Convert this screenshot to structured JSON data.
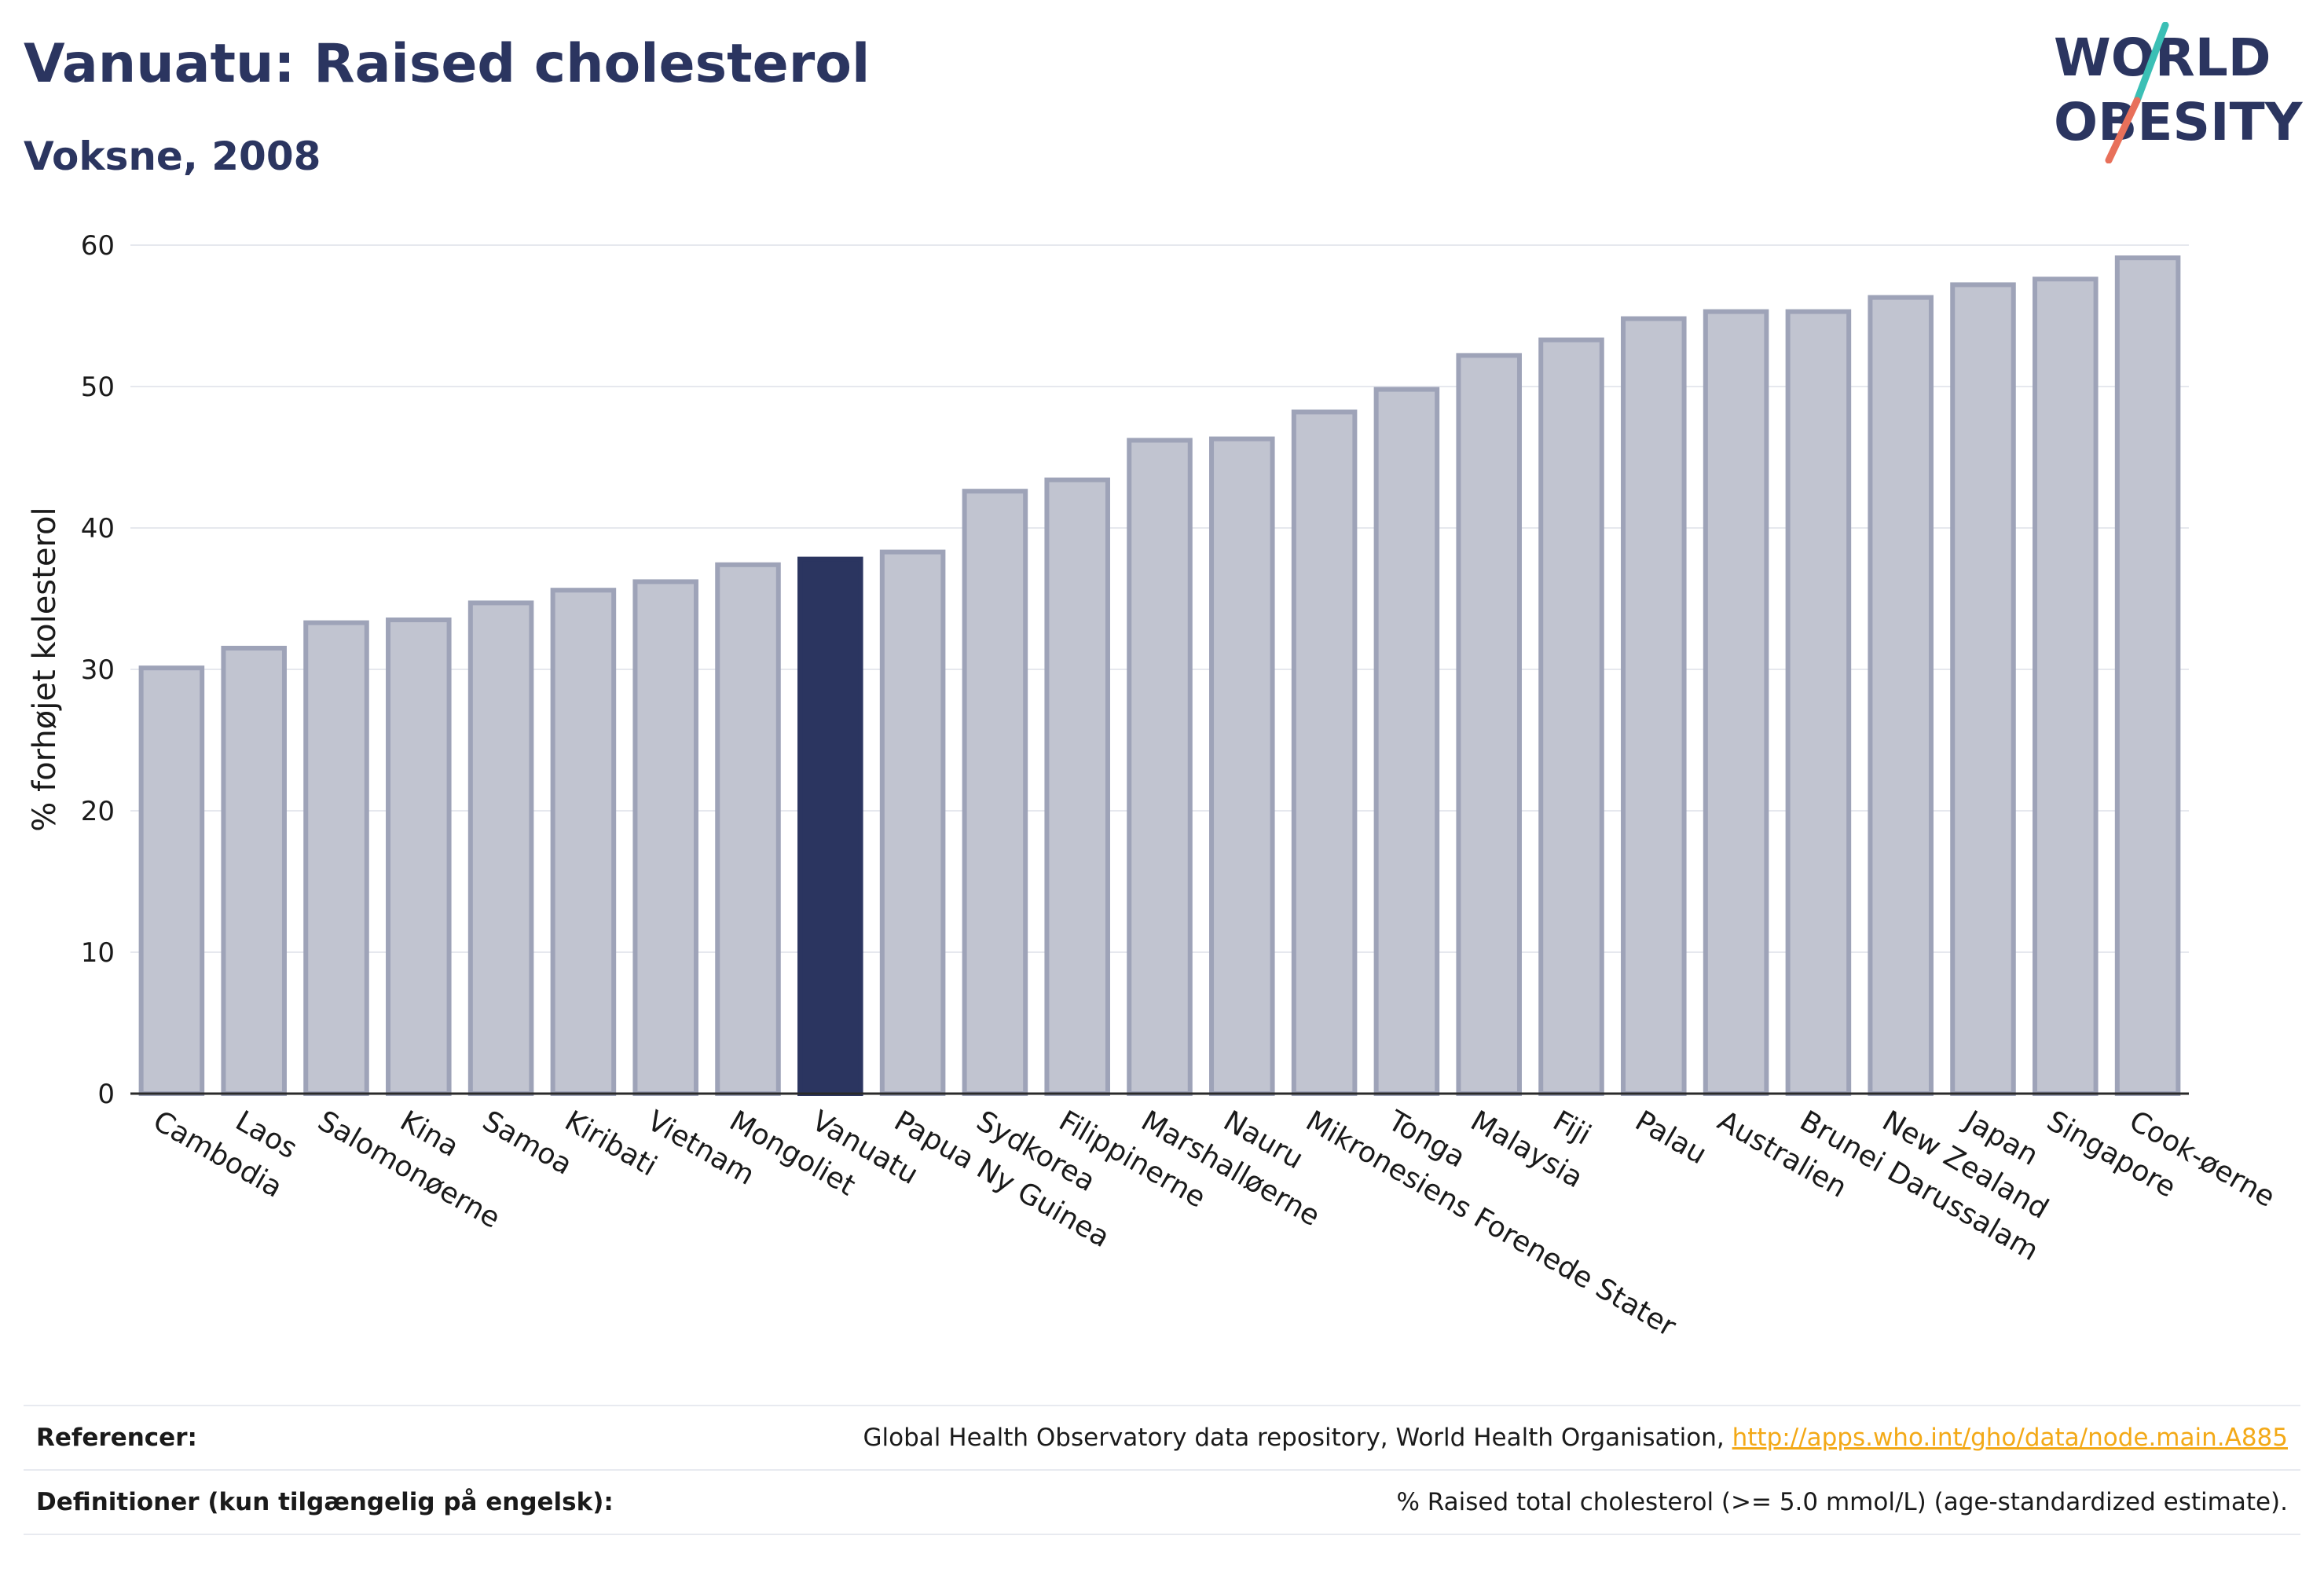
{
  "header": {
    "title": "Vanuatu: Raised cholesterol",
    "subtitle": "Voksne, 2008"
  },
  "logo": {
    "line1": "WORLD",
    "line2": "OBESITY"
  },
  "colors": {
    "highlight": "#2b3560",
    "bar_fill": "#c1c4d0",
    "bar_stroke": "#9ea3b8",
    "grid": "#e6e8ee",
    "logo_teal": "#3bbfb5",
    "logo_coral": "#e8705a"
  },
  "chart_data": {
    "type": "bar",
    "title": "Vanuatu: Raised cholesterol",
    "subtitle": "Voksne, 2008",
    "xlabel": "",
    "ylabel": "% forhøjet kolesterol",
    "ylim": [
      0,
      60
    ],
    "yticks": [
      0,
      10,
      20,
      30,
      40,
      50,
      60
    ],
    "grid": true,
    "highlight_category": "Vanuatu",
    "categories": [
      "Cambodia",
      "Laos",
      "Salomonøerne",
      "Kina",
      "Samoa",
      "Kiribati",
      "Vietnam",
      "Mongoliet",
      "Vanuatu",
      "Papua Ny Guinea",
      "Sydkorea",
      "Filippinerne",
      "Marshalløerne",
      "Nauru",
      "Mikronesiens Forenede Stater",
      "Tonga",
      "Malaysia",
      "Fiji",
      "Palau",
      "Australien",
      "Brunei Darussalam",
      "New Zealand",
      "Japan",
      "Singapore",
      "Cook-øerne"
    ],
    "values": [
      30.1,
      31.5,
      33.3,
      33.5,
      34.7,
      35.6,
      36.2,
      37.4,
      37.8,
      38.3,
      42.6,
      43.4,
      46.2,
      46.3,
      48.2,
      49.8,
      52.2,
      53.3,
      54.8,
      55.3,
      55.3,
      56.3,
      57.2,
      57.6,
      59.1
    ]
  },
  "footer": {
    "references_label": "Referencer:",
    "references_text": "Global Health Observatory data repository, World Health Organisation, ",
    "references_link": "http://apps.who.int/gho/data/node.main.A885",
    "definitions_label": "Definitioner (kun tilgængelig på engelsk):",
    "definitions_text": "% Raised total cholesterol (>= 5.0 mmol/L) (age-standardized estimate)."
  }
}
